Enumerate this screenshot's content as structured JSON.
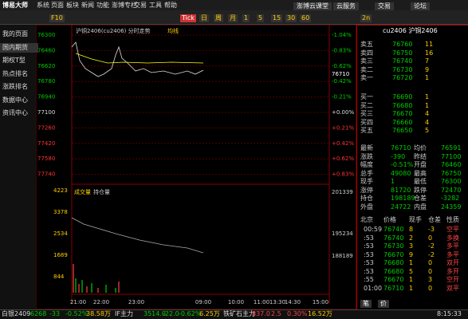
{
  "menu": {
    "logo": "博易大师",
    "items": [
      "系统",
      "页面",
      "板块",
      "新闻",
      "功能",
      "澎博专栏",
      "交易",
      "工具",
      "帮助"
    ],
    "right": [
      "澎博云课堂",
      "云服务",
      "交易",
      "论坛"
    ]
  },
  "toolbar": [
    "F10",
    "Tick",
    "日",
    "周",
    "月",
    "1",
    "5",
    "15",
    "30",
    "60",
    "2n"
  ],
  "sidebar": [
    "我的页面",
    "国内期货",
    "期权T型",
    "热点排名",
    "涨跌排名",
    "数据中心",
    "资讯中心"
  ],
  "chart": {
    "title": "沪铜2406(cu2406) 分时走势",
    "ma": "均线",
    "price_ticks": [
      "76300",
      "76460",
      "76620",
      "76780",
      "76940",
      "77100",
      "77260",
      "77420",
      "77580",
      "77740"
    ],
    "pct_ticks": [
      "-1.04%",
      "-0.83%",
      "-0.62%",
      "-0.42%",
      "-0.21%",
      "+0.00%",
      "+0.21%",
      "+0.42%",
      "+0.62%",
      "+0.83%"
    ],
    "last": "76710",
    "volume_title": "成交量",
    "oi_title": "持仓量",
    "vol_ticks": [
      "4223",
      "3378",
      "2534",
      "1689",
      "844"
    ],
    "oi_ticks": [
      "201339",
      "195234",
      "188189"
    ],
    "times": [
      "21:00",
      "22:00",
      "23:00",
      "09:00",
      "10:00",
      "11:00",
      "13:30",
      "14:30",
      "15:00"
    ]
  },
  "quote": {
    "header": "cu2406 沪铜2406",
    "asks": [
      [
        "卖五",
        "76760",
        "11"
      ],
      [
        "卖四",
        "76750",
        "16"
      ],
      [
        "卖三",
        "76740",
        "7"
      ],
      [
        "卖二",
        "76730",
        "9"
      ],
      [
        "卖一",
        "76720",
        "1"
      ]
    ],
    "bids": [
      [
        "买一",
        "76690",
        "1"
      ],
      [
        "买二",
        "76680",
        "1"
      ],
      [
        "买三",
        "76670",
        "4"
      ],
      [
        "买四",
        "76660",
        "4"
      ],
      [
        "买五",
        "76650",
        "5"
      ]
    ],
    "stats": [
      [
        "最新",
        "76710",
        "均价",
        "76591"
      ],
      [
        "涨跌",
        "-390",
        "昨结",
        "77100"
      ],
      [
        "幅度",
        "-0.51%",
        "开盘",
        "76460"
      ],
      [
        "总手",
        "49080",
        "最高",
        "76750"
      ],
      [
        "现手",
        "1",
        "最低",
        "76300"
      ],
      [
        "涨停",
        "81720",
        "跌停",
        "72470"
      ],
      [
        "持仓",
        "198189",
        "仓差",
        "-3282"
      ],
      [
        "外盘",
        "24722",
        "内盘",
        "24359"
      ]
    ],
    "ticks_header": [
      "北京",
      "价格",
      "现手",
      "仓差",
      "性质"
    ],
    "ticks": [
      [
        "00:59",
        "76740",
        "8",
        "-3",
        "空平"
      ],
      [
        ":53",
        "76740",
        "2",
        "0",
        "多换"
      ],
      [
        ":53",
        "76730",
        "3",
        "-2",
        "多平"
      ],
      [
        ":53",
        "76670",
        "9",
        "-2",
        "多平"
      ],
      [
        ":53",
        "76680",
        "1",
        "0",
        "双开"
      ],
      [
        ":53",
        "76680",
        "5",
        "0",
        "多开"
      ],
      [
        ":55",
        "76670",
        "1",
        "3",
        "空开"
      ],
      [
        "01:00",
        "76710",
        "1",
        "0",
        "双平"
      ]
    ],
    "tabs": [
      "笔",
      "价"
    ]
  },
  "status": [
    [
      "白银2409",
      "6268",
      "-33",
      "-0.52%",
      "38.58万"
    ],
    [
      "IF主力",
      "3514.0",
      "-22.0",
      "-0.62%",
      "6.25万"
    ],
    [
      "铁矿石主力",
      "837.0",
      "2.5",
      "0.30%",
      "16.52万"
    ]
  ],
  "clock": "8:15:33"
}
